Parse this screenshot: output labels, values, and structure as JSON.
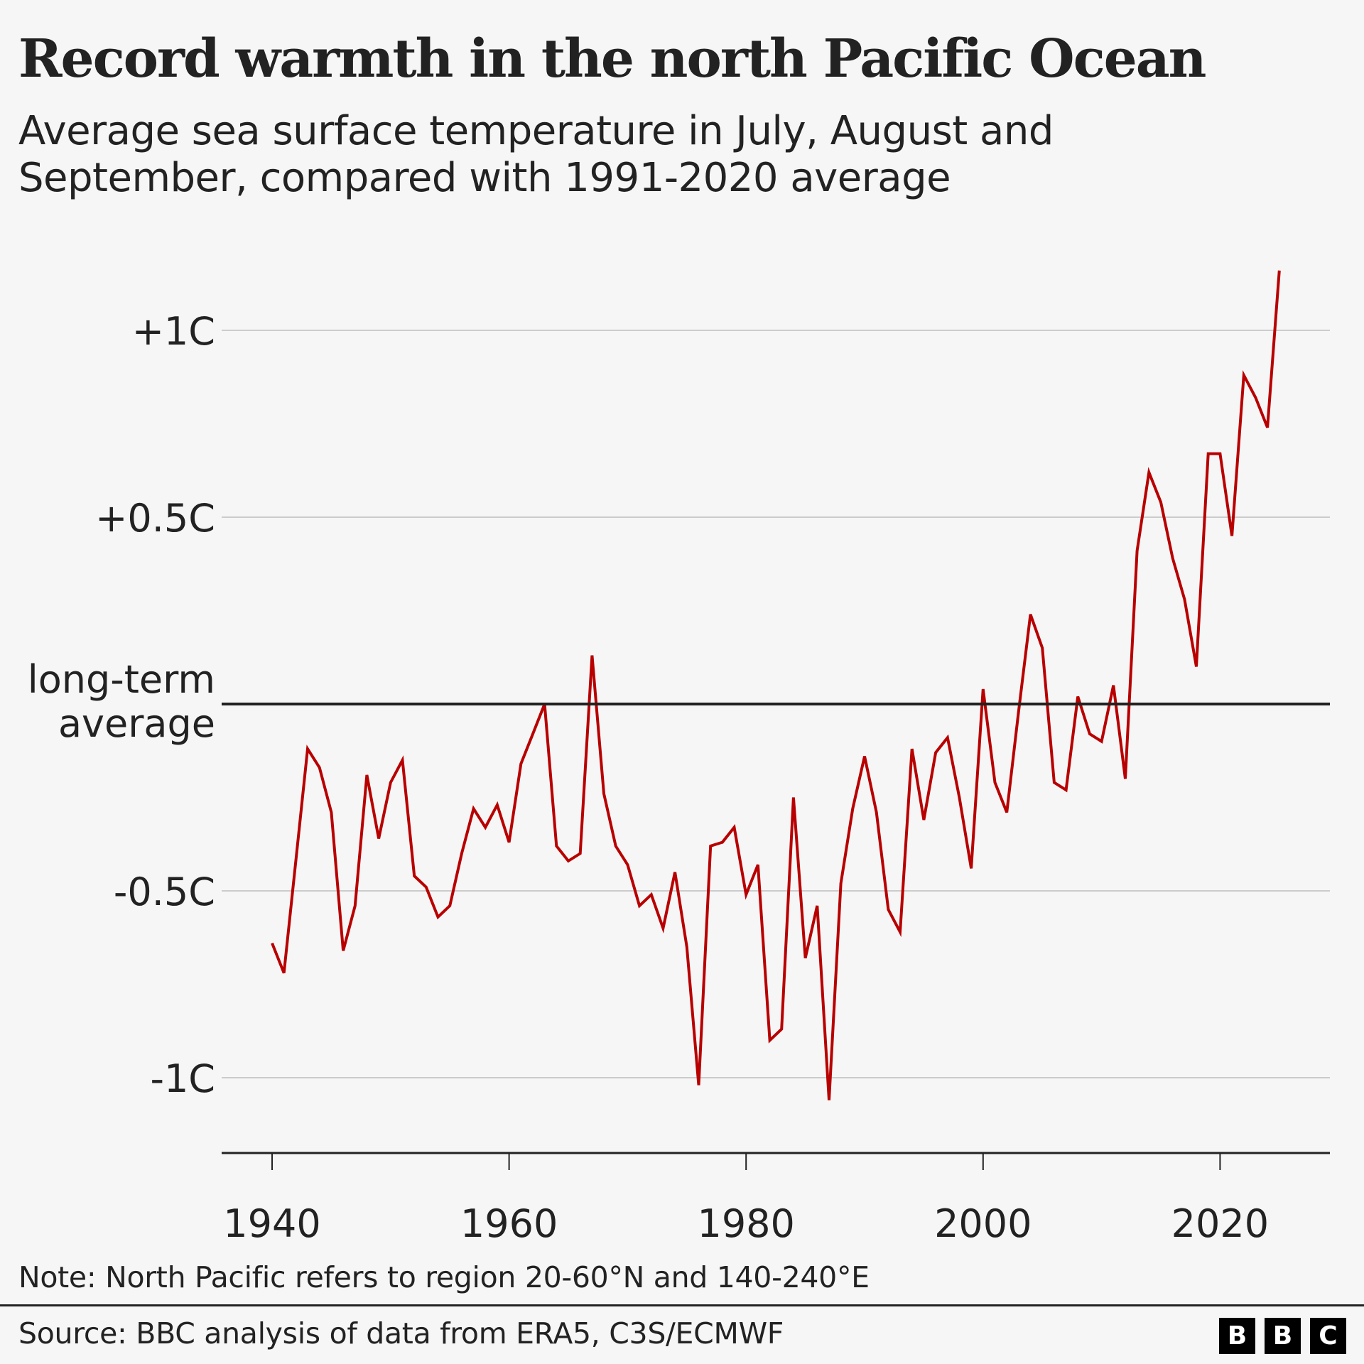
{
  "header": {
    "title": "Record warmth in the north Pacific Ocean",
    "subtitle": "Average sea surface temperature in July, August and September, compared with 1991-2020 average"
  },
  "footer": {
    "note": "Note: North Pacific refers to region 20-60°N and 140-240°E",
    "source": "Source: BBC analysis of data from ERA5, C3S/ECMWF",
    "logo_letters": [
      "B",
      "B",
      "C"
    ]
  },
  "colors": {
    "line": "#b80000",
    "baseline": "#222222",
    "grid": "#cccccc",
    "text": "#222222",
    "background": "#f6f6f6"
  },
  "chart_data": {
    "type": "line",
    "title": "Record warmth in the north Pacific Ocean",
    "subtitle": "Average sea surface temperature in July, August and September, compared with 1991-2020 average",
    "xlabel": "",
    "ylabel": "",
    "xlim": [
      1936,
      2029
    ],
    "ylim": [
      -1.2,
      1.2
    ],
    "x_ticks": [
      1940,
      1960,
      1980,
      2000,
      2020
    ],
    "x_tick_labels": [
      "1940",
      "1960",
      "1980",
      "2000",
      "2020"
    ],
    "y_ticks": [
      1,
      0.5,
      0,
      -0.5,
      -1
    ],
    "y_tick_labels": [
      "+1C",
      "+0.5C",
      "long-term average",
      "-0.5C",
      "-1C"
    ],
    "grid": true,
    "baseline": {
      "value": 0,
      "label": "long-term average"
    },
    "series": [
      {
        "name": "Sea surface temperature anomaly (C)",
        "x": [
          1940,
          1941,
          1942,
          1943,
          1944,
          1945,
          1946,
          1947,
          1948,
          1949,
          1950,
          1951,
          1952,
          1953,
          1954,
          1955,
          1956,
          1957,
          1958,
          1959,
          1960,
          1961,
          1962,
          1963,
          1964,
          1965,
          1966,
          1967,
          1968,
          1969,
          1970,
          1971,
          1972,
          1973,
          1974,
          1975,
          1976,
          1977,
          1978,
          1979,
          1980,
          1981,
          1982,
          1983,
          1984,
          1985,
          1986,
          1987,
          1988,
          1989,
          1990,
          1991,
          1992,
          1993,
          1994,
          1995,
          1996,
          1997,
          1998,
          1999,
          2000,
          2001,
          2002,
          2003,
          2004,
          2005,
          2006,
          2007,
          2008,
          2009,
          2010,
          2011,
          2012,
          2013,
          2014,
          2015,
          2016,
          2017,
          2018,
          2019,
          2020,
          2021,
          2022,
          2023,
          2024,
          2025
        ],
        "values": [
          -0.64,
          -0.72,
          -0.42,
          -0.12,
          -0.17,
          -0.29,
          -0.66,
          -0.54,
          -0.19,
          -0.36,
          -0.21,
          -0.15,
          -0.46,
          -0.49,
          -0.57,
          -0.54,
          -0.4,
          -0.28,
          -0.33,
          -0.27,
          -0.37,
          -0.16,
          -0.08,
          0.0,
          -0.38,
          -0.42,
          -0.4,
          0.13,
          -0.24,
          -0.38,
          -0.43,
          -0.54,
          -0.51,
          -0.6,
          -0.45,
          -0.65,
          -1.02,
          -0.38,
          -0.37,
          -0.33,
          -0.51,
          -0.43,
          -0.9,
          -0.87,
          -0.25,
          -0.68,
          -0.54,
          -1.06,
          -0.48,
          -0.28,
          -0.14,
          -0.29,
          -0.55,
          -0.61,
          -0.12,
          -0.31,
          -0.13,
          -0.09,
          -0.25,
          -0.44,
          0.04,
          -0.21,
          -0.29,
          -0.02,
          0.24,
          0.15,
          -0.21,
          -0.23,
          0.02,
          -0.08,
          -0.1,
          0.05,
          -0.2,
          0.41,
          0.62,
          0.54,
          0.39,
          0.28,
          0.1,
          0.67,
          0.67,
          0.45,
          0.88,
          0.82,
          0.74,
          1.16
        ]
      }
    ]
  }
}
